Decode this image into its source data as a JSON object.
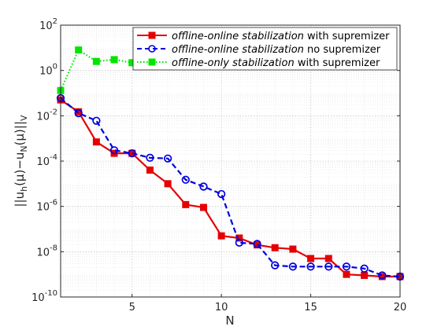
{
  "chart_data": {
    "type": "line",
    "title": "",
    "xlabel": "N",
    "ylabel": "||u_h(μ)−u_N(μ)||_V",
    "ylabel_parts": {
      "open": "||u",
      "sub_h": "h",
      "mid": "(μ)−u",
      "sub_N": "N",
      "close": "(μ)||",
      "sub_V": "V"
    },
    "x_scale": "linear",
    "y_scale": "log",
    "xlim": [
      1,
      20
    ],
    "ylim": [
      1e-10,
      100
    ],
    "xticks": [
      5,
      10,
      15,
      20
    ],
    "xtick_labels": [
      "5",
      "10",
      "15",
      "20"
    ],
    "yticks": [
      1e-10,
      1e-08,
      1e-06,
      0.0001,
      0.01,
      1,
      100
    ],
    "ytick_labels": [
      {
        "base": "10",
        "exp": "-10"
      },
      {
        "base": "10",
        "exp": "-8"
      },
      {
        "base": "10",
        "exp": "-6"
      },
      {
        "base": "10",
        "exp": "-4"
      },
      {
        "base": "10",
        "exp": "-2"
      },
      {
        "base": "10",
        "exp": "0"
      },
      {
        "base": "10",
        "exp": "2"
      }
    ],
    "grid": true,
    "minor_grid": true,
    "legend_position": "top-right",
    "series": [
      {
        "name": "offline-online stabilization with supremizer",
        "name_italic": "offline-online stabilization",
        "name_plain": " with supremizer",
        "color": "#e60000",
        "line_style": "solid",
        "marker": "square",
        "x": [
          1,
          2,
          3,
          4,
          5,
          6,
          7,
          8,
          9,
          10,
          11,
          12,
          13,
          14,
          15,
          16,
          17,
          18,
          19,
          20
        ],
        "y": [
          0.05,
          0.015,
          0.0007,
          0.00022,
          0.00022,
          4e-05,
          1e-05,
          1.2e-06,
          9e-07,
          5e-08,
          4e-08,
          2e-08,
          1.5e-08,
          1.3e-08,
          5e-09,
          5e-09,
          1e-09,
          9e-10,
          8e-10,
          8e-10
        ]
      },
      {
        "name": "offline-online stabilization no supremizer",
        "name_italic": "offline-online stabilization",
        "name_plain": " no supremizer",
        "color": "#0000e0",
        "line_style": "dashed",
        "marker": "circle",
        "x": [
          1,
          2,
          3,
          4,
          5,
          6,
          7,
          8,
          9,
          10,
          11,
          12,
          13,
          14,
          15,
          16,
          17,
          18,
          19,
          20
        ],
        "y": [
          0.06,
          0.013,
          0.006,
          0.0003,
          0.00022,
          0.00014,
          0.00013,
          1.5e-05,
          7.5e-06,
          3.5e-06,
          2.5e-08,
          2.2e-08,
          2.5e-09,
          2.2e-09,
          2.2e-09,
          2.2e-09,
          2.2e-09,
          1.8e-09,
          9e-10,
          8e-10
        ]
      },
      {
        "name": "offline-only stabilization with supremizer",
        "name_italic": "offline-only stabilization",
        "name_plain": " with supremizer",
        "color": "#00e600",
        "line_style": "dotted",
        "marker": "square",
        "x": [
          1,
          2,
          3,
          4,
          5
        ],
        "y": [
          0.13,
          8,
          2.5,
          3,
          2.2
        ]
      }
    ]
  }
}
